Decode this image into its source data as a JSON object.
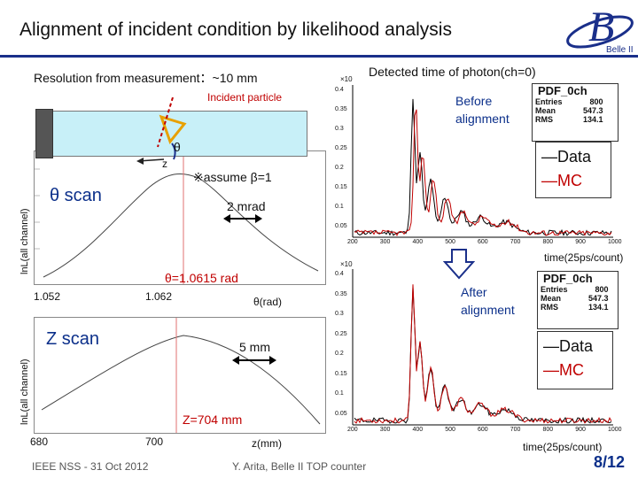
{
  "slide": {
    "title": "Alignment of incident condition by likelihood analysis",
    "resolution": "Resolution from measurement：~10 mm",
    "detected_title": "Detected time of photon(ch=0)",
    "incident_particle": "Incident particle",
    "theta": "θ",
    "z": "z",
    "assume_beta": "※assume β=1",
    "logo_sub": "Belle II",
    "footer_left": "IEEE NSS - 31 Oct 2012",
    "footer_center": "Y. Arita, Belle II TOP counter",
    "page": "8/12",
    "colors": {
      "accent": "#0b2f8a",
      "red": "#c00000",
      "hatch": "#e8a000"
    }
  },
  "theta_scan": {
    "label": "θ scan",
    "ylabel": "lnL(all channel)",
    "width_note": "2 mrad",
    "result": "θ=1.0615 rad",
    "xticks": [
      "1.052",
      "1.062"
    ],
    "xunit": "θ(rad)"
  },
  "z_scan": {
    "label": "Z scan",
    "ylabel": "lnL(all channel)",
    "width_note": "5 mm",
    "result": "Z=704 mm",
    "xticks": [
      "680",
      "700"
    ],
    "xunit": "z(mm)"
  },
  "hist_before": {
    "note": "Before alignment",
    "stat_title": "PDF_0ch",
    "entries_label": "Entries",
    "entries": "800",
    "mean_label": "Mean",
    "mean": "547.3",
    "rms_label": "RMS",
    "rms": "134.1",
    "legend_data": "―Data",
    "legend_mc": "―MC",
    "xunit": "time(25ps/count)",
    "yexp": "×10",
    "yticks": [
      "0.4",
      "0.35",
      "0.3",
      "0.25",
      "0.2",
      "0.15",
      "0.1",
      "0.05"
    ],
    "xticks": [
      "200",
      "300",
      "400",
      "500",
      "600",
      "700",
      "800",
      "900",
      "1000"
    ]
  },
  "hist_after": {
    "note": "After alignment",
    "stat_title": "PDF_0ch",
    "entries_label": "Entries",
    "entries": "800",
    "mean_label": "Mean",
    "mean": "547.3",
    "rms_label": "RMS",
    "rms": "134.1",
    "legend_data": "―Data",
    "legend_mc": "―MC",
    "xunit": "time(25ps/count)",
    "yexp": "×10",
    "yticks": [
      "0.4",
      "0.35",
      "0.3",
      "0.25",
      "0.2",
      "0.15",
      "0.1",
      "0.05"
    ],
    "xticks": [
      "200",
      "300",
      "400",
      "500",
      "600",
      "700",
      "800",
      "900",
      "1000"
    ]
  }
}
